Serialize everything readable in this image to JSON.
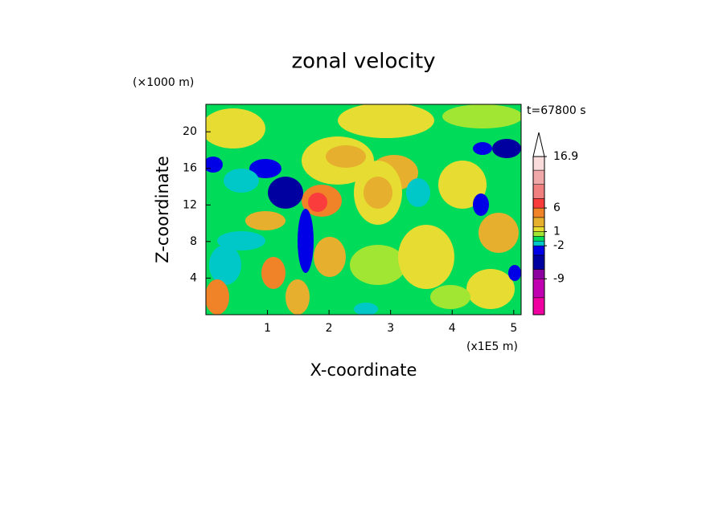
{
  "chart_data": {
    "type": "contour",
    "title": "zonal velocity",
    "xlabel": "X-coordinate",
    "ylabel": "Z-coordinate",
    "x_unit": "(x1E5 m)",
    "y_unit": "(×1000 m)",
    "time_label": "t=67800 s",
    "xlim": [
      0,
      5.12
    ],
    "xticks": [
      1,
      2,
      3,
      4,
      5
    ],
    "ylim": [
      0,
      23
    ],
    "yticks": [
      4,
      8,
      12,
      16,
      20
    ],
    "colorbar": {
      "clim": [
        -16.6,
        16.9
      ],
      "ticks": [
        -9,
        -2,
        1,
        6,
        16.9
      ],
      "levels": [
        -16.6,
        -13,
        -9,
        -7,
        -4,
        -2,
        -1,
        0,
        1,
        2,
        4,
        6,
        8,
        11,
        14,
        16.9
      ],
      "colors": [
        "#f000a0",
        "#c000b0",
        "#8c00a0",
        "#0000a0",
        "#0000e6",
        "#00c8c8",
        "#00dc5a",
        "#a0e632",
        "#e6dc32",
        "#e6af2d",
        "#f08228",
        "#fa3c3c",
        "#f08080",
        "#f0a8a8",
        "#fadcdc"
      ]
    }
  }
}
